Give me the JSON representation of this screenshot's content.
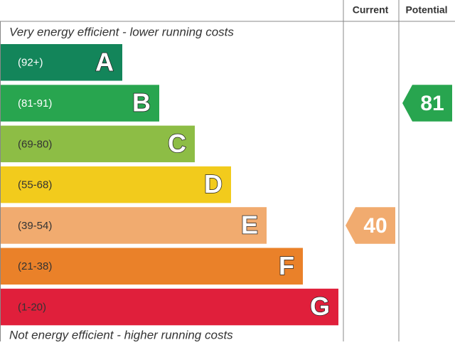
{
  "header": {
    "current": "Current",
    "potential": "Potential"
  },
  "top_note": "Very energy efficient - lower running costs",
  "bottom_note": "Not energy efficient - higher running costs",
  "bands": [
    {
      "range": "(92+)",
      "letter": "A",
      "color": "#13855a",
      "text_color": "#ffffff"
    },
    {
      "range": "(81-91)",
      "letter": "B",
      "color": "#28a54f",
      "text_color": "#ffffff"
    },
    {
      "range": "(69-80)",
      "letter": "C",
      "color": "#8dbd45",
      "text_color": "#333333"
    },
    {
      "range": "(55-68)",
      "letter": "D",
      "color": "#f2cb1c",
      "text_color": "#333333"
    },
    {
      "range": "(39-54)",
      "letter": "E",
      "color": "#f1ab6f",
      "text_color": "#333333"
    },
    {
      "range": "(21-38)",
      "letter": "F",
      "color": "#ea8129",
      "text_color": "#333333"
    },
    {
      "range": "(1-20)",
      "letter": "G",
      "color": "#e01f3b",
      "text_color": "#333333"
    }
  ],
  "current": 40,
  "potential": 81
}
